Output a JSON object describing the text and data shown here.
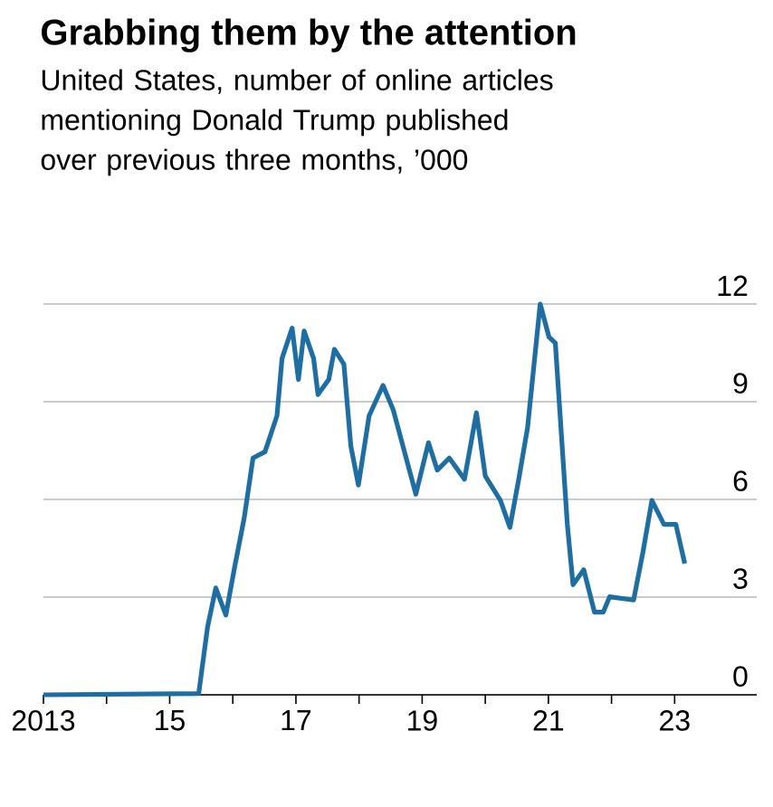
{
  "chart_data": {
    "type": "line",
    "title": "Grabbing them by the attention",
    "subtitle": "United States, number of online articles mentioning Donald Trump published over previous three months, ’000",
    "xlim": [
      2013,
      2024.3
    ],
    "ylim": [
      0,
      12
    ],
    "xticks": [
      {
        "value": 2013,
        "label": "2013"
      },
      {
        "value": 2014,
        "label": null
      },
      {
        "value": 2015,
        "label": "15"
      },
      {
        "value": 2016,
        "label": null
      },
      {
        "value": 2017,
        "label": "17"
      },
      {
        "value": 2018,
        "label": null
      },
      {
        "value": 2019,
        "label": "19"
      },
      {
        "value": 2020,
        "label": null
      },
      {
        "value": 2021,
        "label": "21"
      },
      {
        "value": 2022,
        "label": null
      },
      {
        "value": 2023,
        "label": "23"
      }
    ],
    "yticks": [
      0,
      3,
      6,
      9,
      12
    ],
    "grid": "y",
    "marker": "none",
    "line_style": "solid",
    "series": [
      {
        "color": "#1f6ea3",
        "x": [
          2013.0,
          2015.46,
          2015.6,
          2015.73,
          2015.89,
          2016.03,
          2016.18,
          2016.32,
          2016.51,
          2016.7,
          2016.78,
          2016.94,
          2017.04,
          2017.13,
          2017.28,
          2017.35,
          2017.52,
          2017.61,
          2017.76,
          2017.87,
          2017.99,
          2018.16,
          2018.38,
          2018.54,
          2018.9,
          2019.1,
          2019.24,
          2019.43,
          2019.67,
          2019.86,
          2020.0,
          2020.24,
          2020.39,
          2020.53,
          2020.67,
          2020.87,
          2021.01,
          2021.11,
          2021.3,
          2021.39,
          2021.56,
          2021.73,
          2021.87,
          2021.97,
          2022.35,
          2022.5,
          2022.64,
          2022.83,
          2023.02,
          2023.16
        ],
        "values": [
          0.0,
          0.04,
          2.08,
          3.28,
          2.45,
          3.93,
          5.42,
          7.27,
          7.46,
          8.57,
          10.33,
          11.26,
          9.68,
          11.17,
          10.33,
          9.22,
          9.68,
          10.61,
          10.15,
          7.64,
          6.44,
          8.57,
          9.5,
          8.76,
          6.16,
          7.74,
          6.9,
          7.27,
          6.62,
          8.66,
          6.72,
          5.97,
          5.14,
          6.62,
          8.2,
          12.0,
          10.98,
          10.8,
          5.23,
          3.38,
          3.84,
          2.54,
          2.54,
          3.01,
          2.91,
          4.4,
          5.97,
          5.23,
          5.23,
          4.03
        ]
      }
    ]
  }
}
